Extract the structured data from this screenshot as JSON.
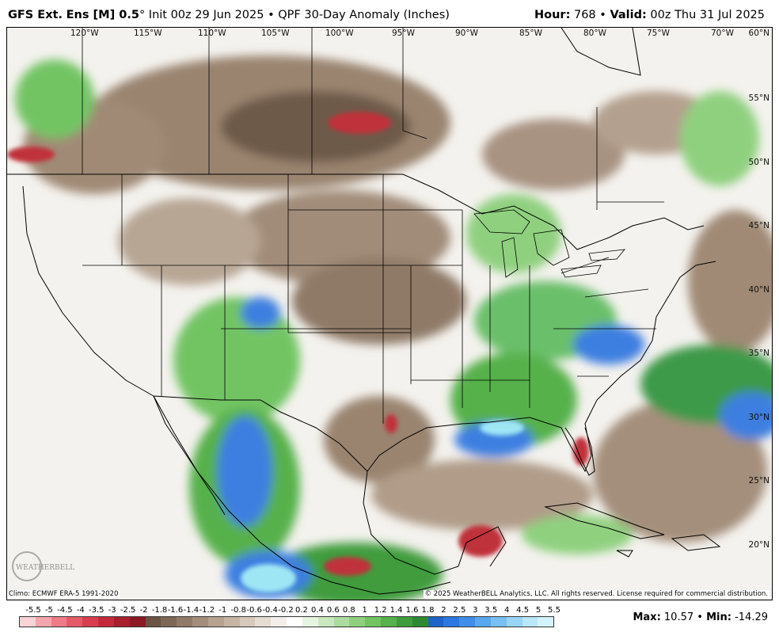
{
  "header": {
    "model": "GFS Ext.",
    "ens": "Ens [M] 0.5",
    "deg": "°",
    "init": "Init 00z 29 Jun 2025",
    "sep": "•",
    "product": "QPF 30-Day Anomaly (Inches)",
    "hour_label": "Hour:",
    "hour_value": "768",
    "valid_label": "Valid:",
    "valid_value": "00z Thu 31 Jul 2025"
  },
  "map": {
    "longitude_labels": [
      "120°W",
      "115°W",
      "110°W",
      "105°W",
      "100°W",
      "95°W",
      "90°W",
      "85°W",
      "80°W",
      "75°W",
      "70°W"
    ],
    "latitude_labels": [
      "60°N",
      "55°N",
      "50°N",
      "45°N",
      "40°N",
      "35°N",
      "30°N",
      "25°N",
      "20°N"
    ],
    "colors": {
      "dry_dark": "#6e5a48",
      "dry_mid": "#9a8470",
      "dry_light": "#c8b8a6",
      "wet_light": "#a8d8a0",
      "wet_mid": "#6bbf6b",
      "wet_dark": "#3e9a4a",
      "very_wet": "#3d7fe0",
      "extreme_wet": "#9fe6f5",
      "extreme_dry": "#c0303a"
    }
  },
  "footer": {
    "climo": "Climo: ECMWF ERA-5 1991-2020",
    "copyright": "© 2025 WeatherBELL Analytics, LLC. All rights reserved. License required for commercial distribution.",
    "logo_text": "WEATHERBELL"
  },
  "colorbar": {
    "ticks": [
      "-5.5",
      "-5",
      "-4.5",
      "-4",
      "-3.5",
      "-3",
      "-2.5",
      "-2",
      "-1.8",
      "-1.6",
      "-1.4",
      "-1.2",
      "-1",
      "-0.8",
      "-0.6",
      "-0.4",
      "-0.2",
      "0.2",
      "0.4",
      "0.6",
      "0.8",
      "1",
      "1.2",
      "1.4",
      "1.6",
      "1.8",
      "2",
      "2.5",
      "3",
      "3.5",
      "4",
      "4.5",
      "5",
      "5.5"
    ],
    "colors": [
      "#fbd3d6",
      "#f5a5ad",
      "#ee7b87",
      "#e55a68",
      "#d93e50",
      "#c42a3b",
      "#a81f2e",
      "#8a1a26",
      "#6a5446",
      "#7d6756",
      "#917a68",
      "#a38e7c",
      "#b5a290",
      "#c6b5a5",
      "#d6c8bb",
      "#e5dcd2",
      "#f3eee9",
      "#ffffff",
      "#e6f4e1",
      "#c9e8c0",
      "#acdc9f",
      "#8fd07f",
      "#72c463",
      "#57b14c",
      "#3f9c3c",
      "#2e8a32",
      "#1e63c8",
      "#2b78e0",
      "#3e8eea",
      "#5aa7f0",
      "#78bff3",
      "#98d5f6",
      "#b8e8f9",
      "#d2f3fb"
    ]
  },
  "stats": {
    "max_label": "Max:",
    "max_value": "10.57",
    "sep": "•",
    "min_label": "Min:",
    "min_value": "-14.29"
  }
}
